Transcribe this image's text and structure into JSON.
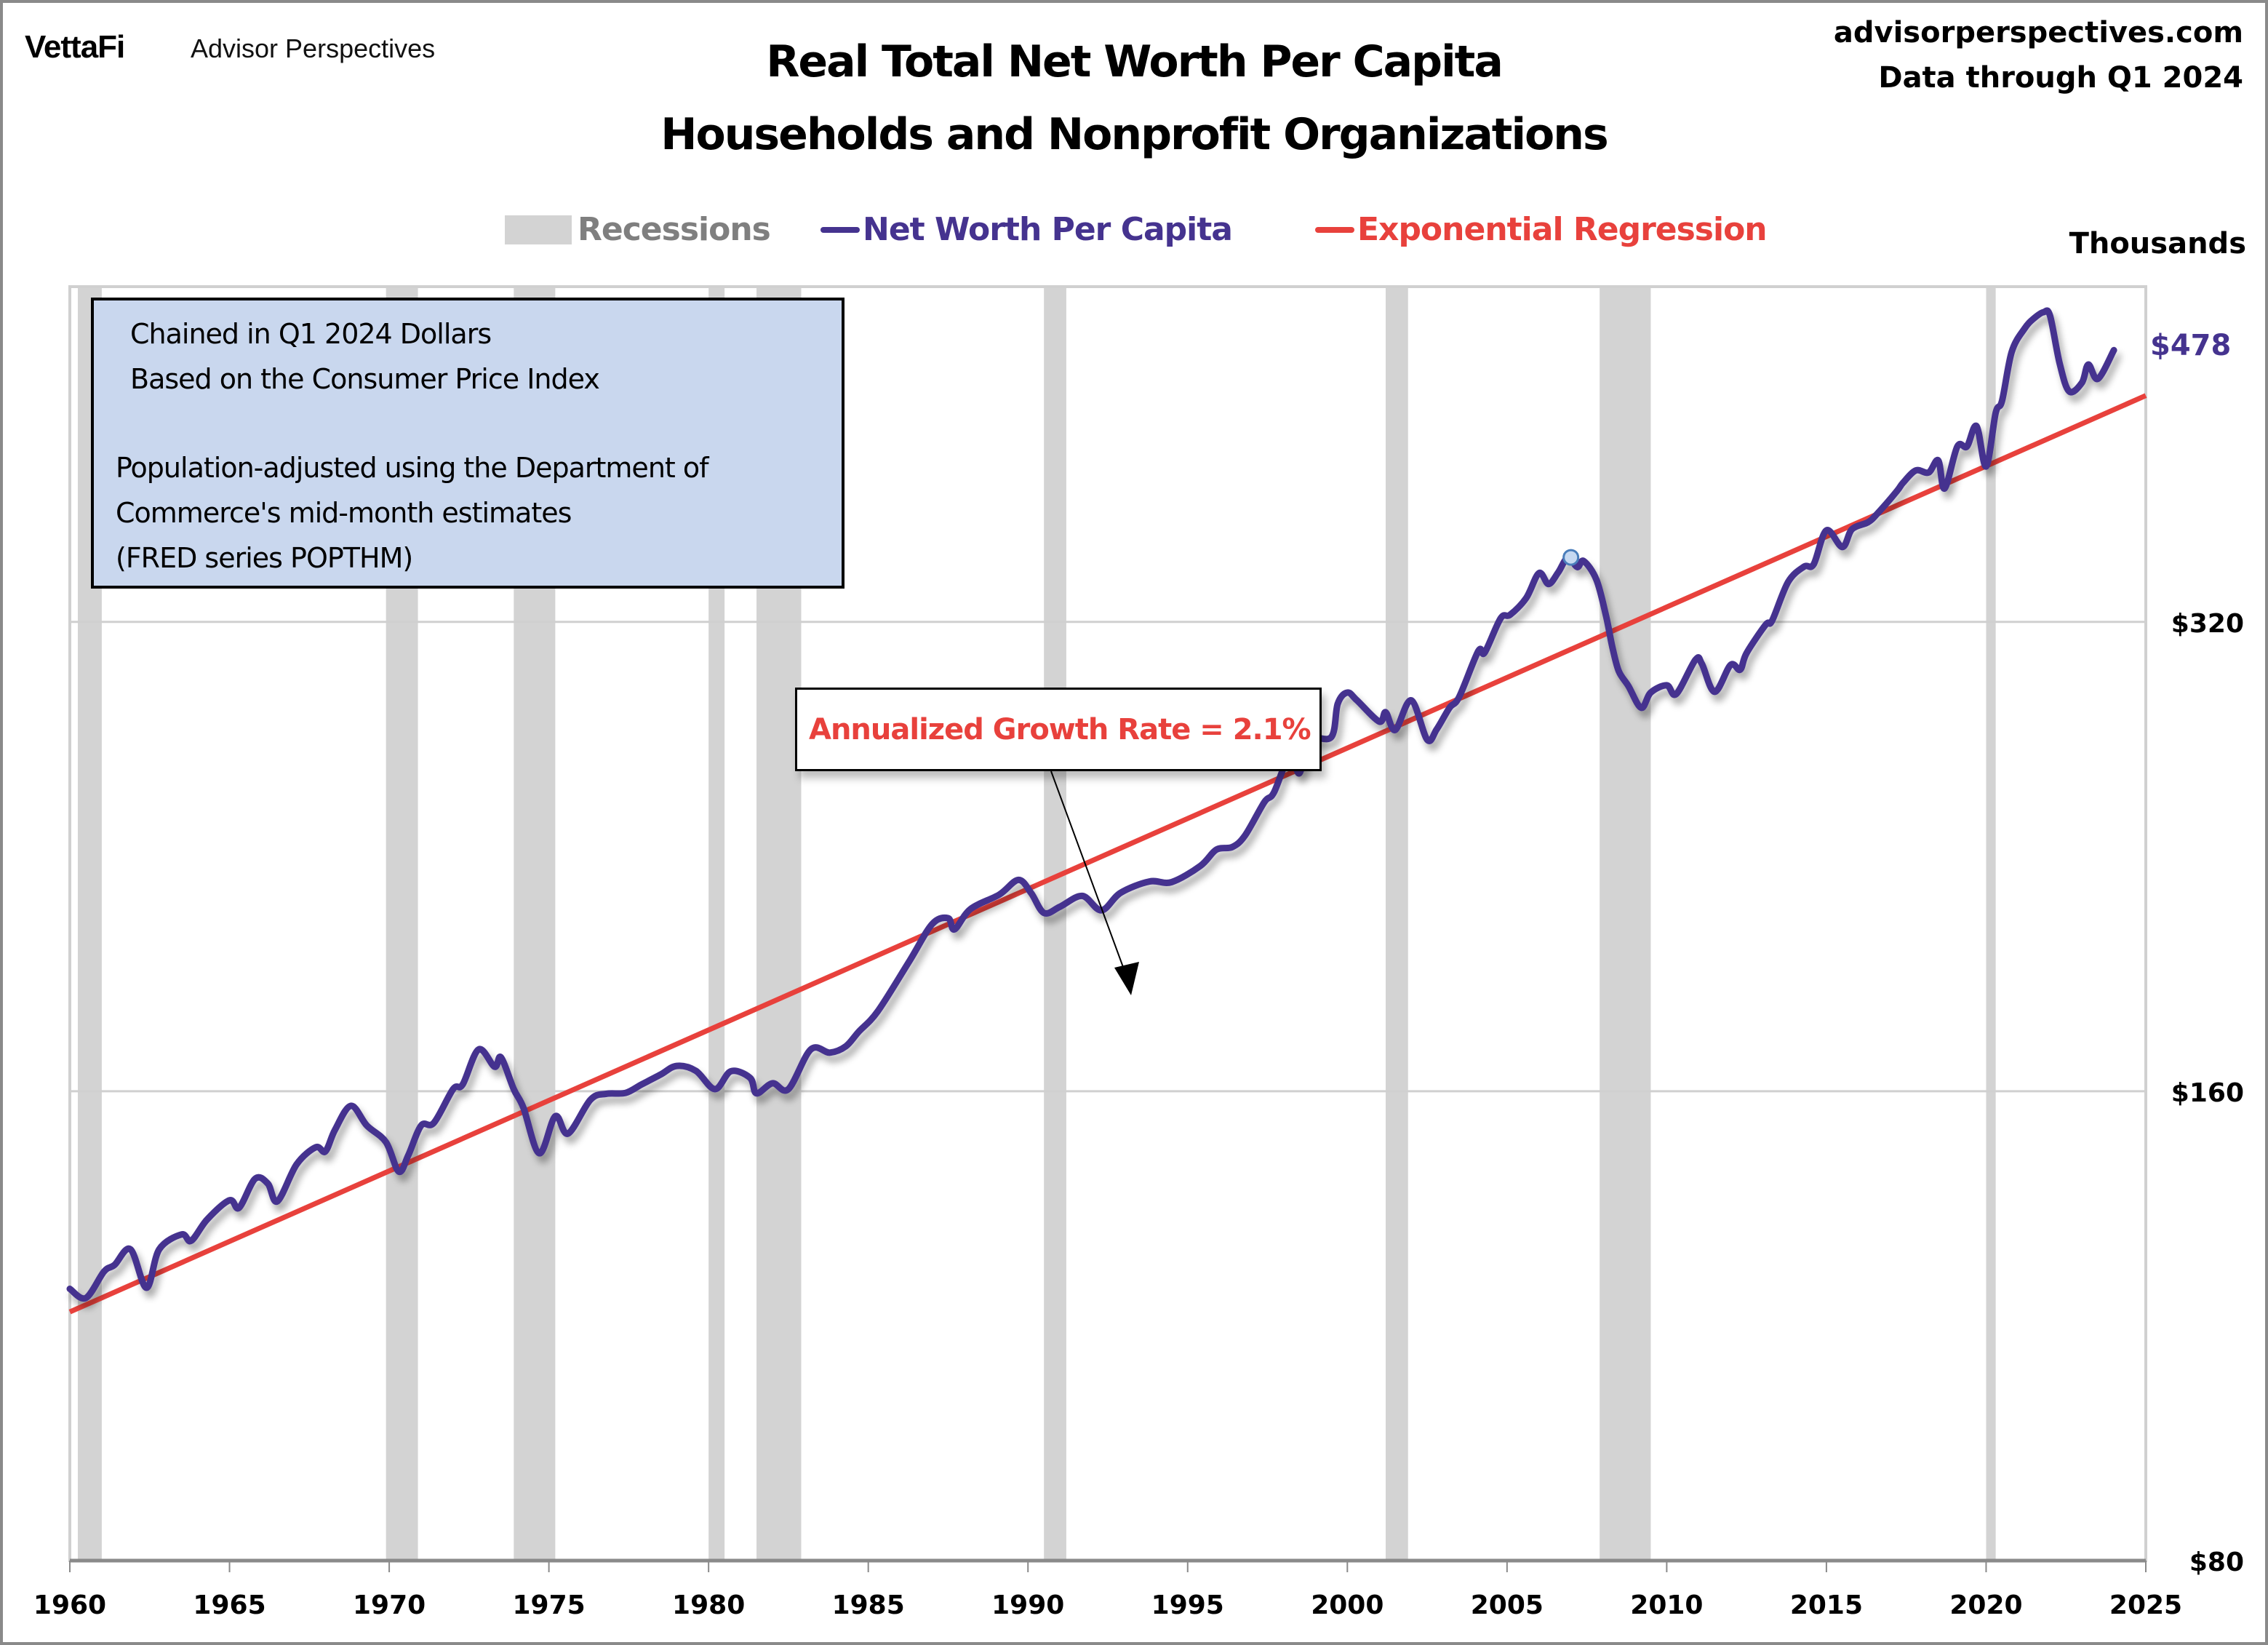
{
  "header": {
    "logo": "VettaFi",
    "brand": "Advisor Perspectives",
    "title_line1": "Real Total Net Worth Per Capita",
    "title_line2": "Households and Nonprofit Organizations",
    "site": "advisorperspectives.com",
    "data_through": "Data through Q1 2024"
  },
  "legend": {
    "recessions": "Recessions",
    "net_worth": "Net Worth Per Capita",
    "regression": "Exponential Regression"
  },
  "colors": {
    "net_worth": "#45338f",
    "regression": "#e8413c",
    "recession": "#d3d3d3",
    "recession_legend_text": "#7f7f7f",
    "note_box_bg": "#c9d7ee",
    "gridline": "#d0d0d0",
    "axis": "#8a8a8a",
    "peak_marker_fill": "#c6d9f1",
    "peak_marker_stroke": "#4a7ebb"
  },
  "notes": {
    "line1": "Chained in Q1 2024 Dollars",
    "line2": "Based on the Consumer Price Index",
    "line3": "Population-adjusted using the Department of",
    "line4": "Commerce's mid-month estimates",
    "line5": "(FRED series POPTHM)"
  },
  "annotation": {
    "text": "Annualized Growth Rate = 2.1%"
  },
  "end_label": "$478",
  "chart_data": {
    "type": "line",
    "title": "Real Total Net Worth Per Capita — Households and Nonprofit Organizations",
    "xlabel": "",
    "ylabel": "Thousands",
    "y_scale": "log2",
    "xlim": [
      1960,
      2025
    ],
    "ylim": [
      80,
      525
    ],
    "x_ticks": [
      1960,
      1965,
      1970,
      1975,
      1980,
      1985,
      1990,
      1995,
      2000,
      2005,
      2010,
      2015,
      2020,
      2025
    ],
    "x_tick_labels": [
      "1960",
      "1965",
      "1970",
      "1975",
      "1980",
      "1985",
      "1990",
      "1995",
      "2000",
      "2005",
      "2010",
      "2015",
      "2020",
      "2025"
    ],
    "y_ticks": [
      80,
      160,
      320
    ],
    "y_tick_labels": [
      "$80",
      "$160",
      "$320"
    ],
    "grid": "horizontal",
    "legend_position": "top",
    "recessions": [
      [
        1960.25,
        1961.0
      ],
      [
        1969.9,
        1970.9
      ],
      [
        1973.9,
        1975.2
      ],
      [
        1980.0,
        1980.5
      ],
      [
        1981.5,
        1982.9
      ],
      [
        1990.5,
        1991.2
      ],
      [
        2001.2,
        2001.9
      ],
      [
        2007.9,
        2009.5
      ],
      [
        2020.0,
        2020.3
      ]
    ],
    "series": [
      {
        "name": "Net Worth Per Capita",
        "x": [
          1960.0,
          1960.5,
          1961.07,
          1961.4,
          1961.9,
          1962.4,
          1962.8,
          1963.5,
          1963.8,
          1964.3,
          1965.0,
          1965.3,
          1965.8,
          1966.2,
          1966.5,
          1967.1,
          1967.7,
          1968.0,
          1968.3,
          1968.8,
          1969.3,
          1969.9,
          1970.3,
          1970.6,
          1971.0,
          1971.4,
          1972.0,
          1972.3,
          1972.8,
          1973.3,
          1973.5,
          1973.9,
          1974.2,
          1974.7,
          1975.2,
          1975.6,
          1976.3,
          1976.8,
          1977.4,
          1977.9,
          1978.5,
          1979.0,
          1979.6,
          1980.2,
          1980.7,
          1981.3,
          1981.5,
          1982.0,
          1982.5,
          1983.2,
          1983.8,
          1984.3,
          1984.7,
          1985.3,
          1986.3,
          1987.0,
          1987.5,
          1987.7,
          1988.2,
          1989.1,
          1989.7,
          1990.1,
          1990.5,
          1991.0,
          1991.7,
          1992.3,
          1992.9,
          1993.8,
          1994.5,
          1995.4,
          1995.9,
          1996.4,
          1996.8,
          1997.4,
          1997.7,
          1998.2,
          1998.5,
          1998.8,
          1999.5,
          1999.7,
          2000.0,
          2000.3,
          2001.0,
          2001.2,
          2001.5,
          2002.0,
          2002.5,
          2002.8,
          2003.2,
          2003.5,
          2004.1,
          2004.3,
          2004.8,
          2005.1,
          2005.6,
          2006.0,
          2006.3,
          2006.6,
          2006.9,
          2007.2,
          2007.4,
          2007.8,
          2008.1,
          2008.3,
          2008.5,
          2008.8,
          2009.2,
          2009.5,
          2010.0,
          2010.3,
          2010.9,
          2011.1,
          2011.5,
          2012.0,
          2012.3,
          2012.5,
          2013.1,
          2013.3,
          2013.8,
          2014.3,
          2014.6,
          2015.0,
          2015.5,
          2015.8,
          2016.3,
          2016.6,
          2017.2,
          2017.4,
          2017.8,
          2018.2,
          2018.5,
          2018.7,
          2019.1,
          2019.4,
          2019.7,
          2020.0,
          2020.3,
          2020.5,
          2020.8,
          2021.2,
          2021.5,
          2021.8,
          2022.0,
          2022.3,
          2022.6,
          2023.0,
          2023.2,
          2023.5,
          2024.0
        ],
        "values": [
          119.5,
          117.9,
          122.6,
          123.8,
          126.7,
          119.7,
          126.7,
          129.5,
          128.3,
          132.4,
          136.2,
          134.7,
          140.6,
          139.6,
          136.0,
          143.6,
          147.3,
          146.4,
          151.1,
          156.6,
          152.1,
          148.4,
          142.1,
          145.6,
          152.1,
          152.7,
          160.5,
          161.6,
          170.2,
          165.9,
          168.2,
          160.5,
          156.2,
          146.0,
          154.2,
          150.3,
          158.0,
          159.4,
          159.6,
          161.6,
          164.0,
          166.1,
          164.9,
          160.5,
          164.8,
          163.2,
          159.5,
          161.9,
          160.5,
          170.2,
          169.4,
          171.0,
          174.7,
          180.1,
          194.1,
          204.8,
          206.6,
          203.2,
          209.4,
          213.9,
          218.6,
          214.4,
          208.2,
          210.1,
          213.5,
          209.0,
          214.5,
          218.1,
          217.9,
          223.2,
          228.6,
          229.5,
          233.5,
          245.2,
          248.7,
          262.8,
          255.9,
          268.9,
          270.0,
          283.6,
          288.3,
          285.0,
          276.2,
          280.0,
          272.8,
          285.0,
          268.9,
          273.1,
          281.9,
          286.4,
          306.5,
          305.8,
          321.7,
          323.4,
          331.5,
          343.9,
          338.4,
          344.2,
          351.8,
          347.0,
          350.1,
          340.5,
          322.8,
          308.2,
          297.5,
          291.1,
          281.9,
          288.3,
          291.4,
          287.7,
          302.6,
          300.8,
          288.6,
          300.3,
          298.2,
          305.6,
          318.7,
          320.6,
          339.4,
          347.2,
          348.4,
          366.3,
          357.4,
          366.9,
          370.7,
          375.6,
          388.0,
          393.0,
          400.2,
          399.0,
          406.2,
          389.7,
          414.6,
          414.6,
          427.3,
          402.6,
          435.7,
          443.6,
          476.7,
          493.4,
          501.0,
          505.6,
          503.0,
          469.1,
          449.8,
          455.6,
          468.0,
          458.2,
          478.0
        ]
      },
      {
        "name": "Exponential Regression",
        "x": [
          1960,
          2025
        ],
        "values": [
          115.5,
          447.0
        ],
        "annualized_growth_rate_pct": 2.1
      }
    ],
    "markers": [
      {
        "label": "2007 peak",
        "x": 2007.0,
        "value": 352
      }
    ],
    "annotations": [
      {
        "text": "Annualized Growth Rate = 2.1%",
        "points_to_x": 1993.5
      }
    ],
    "end_value_label": "$478"
  }
}
